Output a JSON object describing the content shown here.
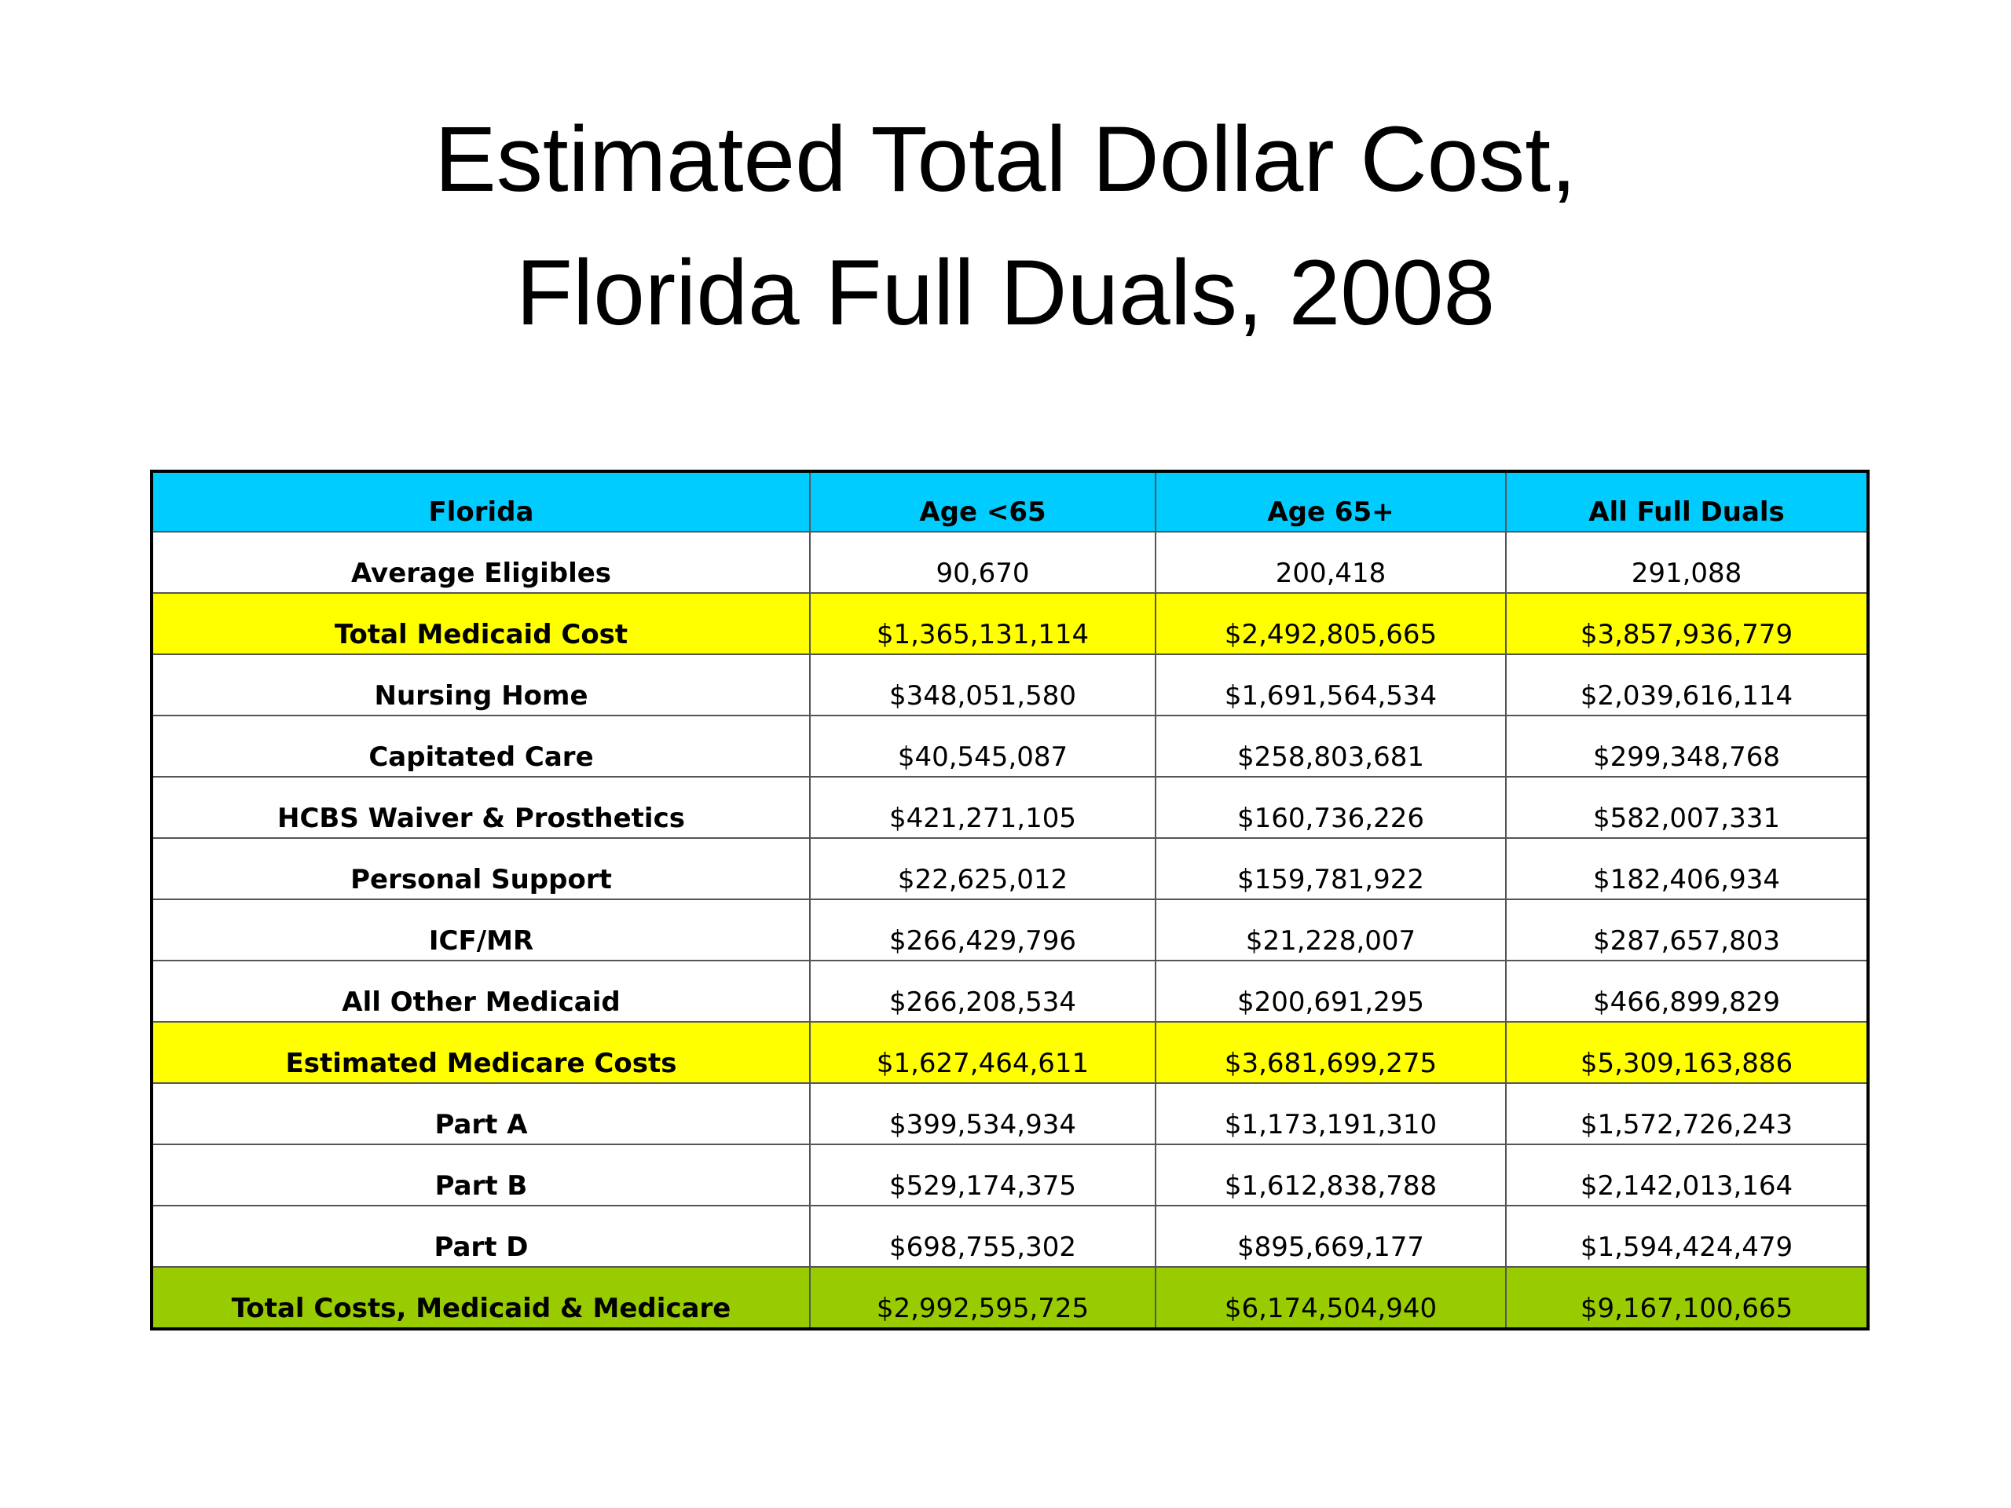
{
  "title": {
    "line1": "Estimated Total Dollar Cost,",
    "line2": "Florida Full Duals, 2008"
  },
  "table": {
    "headers": [
      "Florida",
      "Age <65",
      "Age 65+",
      "All Full Duals"
    ],
    "rows": [
      {
        "label": "Average Eligibles",
        "values": [
          "90,670",
          "200,418",
          "291,088"
        ],
        "style": "white"
      },
      {
        "label": "Total Medicaid Cost",
        "values": [
          "$1,365,131,114",
          "$2,492,805,665",
          "$3,857,936,779"
        ],
        "style": "yellow"
      },
      {
        "label": "Nursing Home",
        "values": [
          "$348,051,580",
          "$1,691,564,534",
          "$2,039,616,114"
        ],
        "style": "white"
      },
      {
        "label": "Capitated Care",
        "values": [
          "$40,545,087",
          "$258,803,681",
          "$299,348,768"
        ],
        "style": "white"
      },
      {
        "label": "HCBS Waiver & Prosthetics",
        "values": [
          "$421,271,105",
          "$160,736,226",
          "$582,007,331"
        ],
        "style": "white"
      },
      {
        "label": "Personal Support",
        "values": [
          "$22,625,012",
          "$159,781,922",
          "$182,406,934"
        ],
        "style": "white"
      },
      {
        "label": "ICF/MR",
        "values": [
          "$266,429,796",
          "$21,228,007",
          "$287,657,803"
        ],
        "style": "white"
      },
      {
        "label": "All Other Medicaid",
        "values": [
          "$266,208,534",
          "$200,691,295",
          "$466,899,829"
        ],
        "style": "white"
      },
      {
        "label": "Estimated Medicare Costs",
        "values": [
          "$1,627,464,611",
          "$3,681,699,275",
          "$5,309,163,886"
        ],
        "style": "yellow"
      },
      {
        "label": "Part A",
        "values": [
          "$399,534,934",
          "$1,173,191,310",
          "$1,572,726,243"
        ],
        "style": "white"
      },
      {
        "label": "Part B",
        "values": [
          "$529,174,375",
          "$1,612,838,788",
          "$2,142,013,164"
        ],
        "style": "white"
      },
      {
        "label": "Part D",
        "values": [
          "$698,755,302",
          "$895,669,177",
          "$1,594,424,479"
        ],
        "style": "white"
      },
      {
        "label": "Total Costs, Medicaid & Medicare",
        "values": [
          "$2,992,595,725",
          "$6,174,504,940",
          "$9,167,100,665"
        ],
        "style": "green"
      }
    ]
  },
  "colors": {
    "header": "#00ccff",
    "highlight_yellow": "#ffff00",
    "total_green": "#99cc00"
  }
}
